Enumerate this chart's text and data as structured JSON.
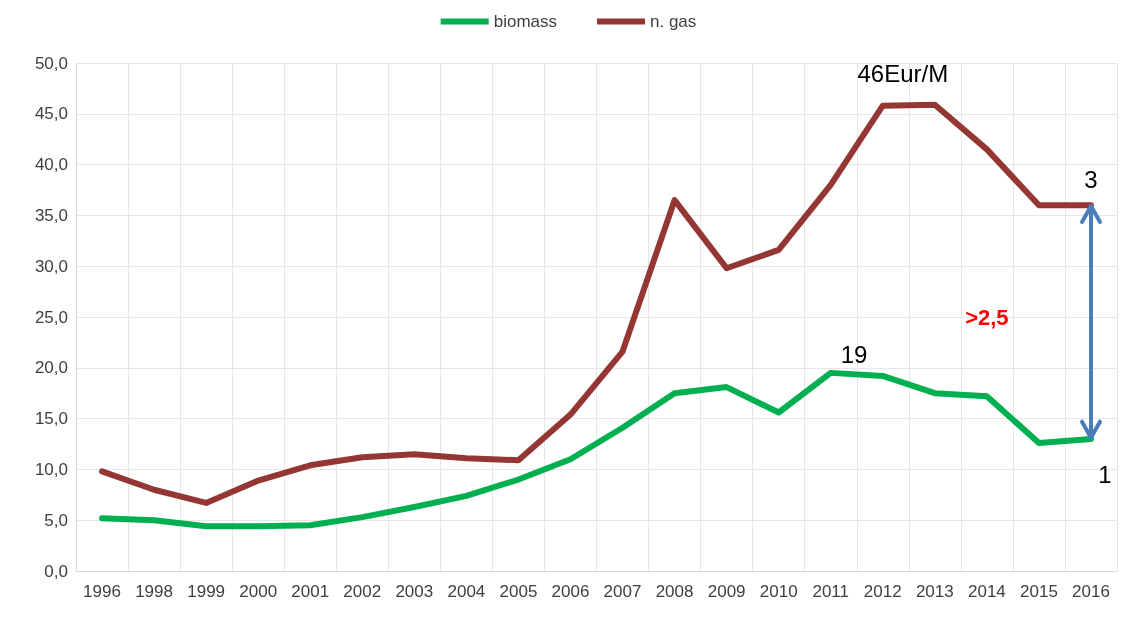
{
  "chart_data": {
    "type": "line",
    "categories": [
      "1996",
      "1998",
      "1999",
      "2000",
      "2001",
      "2002",
      "2003",
      "2004",
      "2005",
      "2006",
      "2007",
      "2008",
      "2009",
      "2010",
      "2011",
      "2012",
      "2013",
      "2014",
      "2015",
      "2016"
    ],
    "series": [
      {
        "name": "biomass",
        "color": "#00b050",
        "values": [
          5.2,
          5.0,
          4.4,
          4.4,
          4.5,
          5.3,
          6.3,
          7.4,
          9.0,
          11.0,
          14.1,
          17.5,
          18.1,
          15.6,
          19.5,
          19.2,
          17.5,
          17.2,
          12.6,
          13.0
        ]
      },
      {
        "name": "n. gas",
        "color": "#943634",
        "values": [
          9.8,
          8.0,
          6.7,
          8.9,
          10.4,
          11.2,
          11.5,
          11.1,
          10.9,
          15.4,
          21.6,
          36.5,
          29.8,
          31.6,
          38.0,
          45.8,
          45.9,
          41.5,
          36.0,
          36.0
        ]
      }
    ],
    "ylim": [
      0,
      50
    ],
    "yticks": [
      {
        "value": 0,
        "label": "0,0"
      },
      {
        "value": 5,
        "label": "5,0"
      },
      {
        "value": 10,
        "label": "10,0"
      },
      {
        "value": 15,
        "label": "15,0"
      },
      {
        "value": 20,
        "label": "20,0"
      },
      {
        "value": 25,
        "label": "25,0"
      },
      {
        "value": 30,
        "label": "30,0"
      },
      {
        "value": 35,
        "label": "35,0"
      },
      {
        "value": 40,
        "label": "40,0"
      },
      {
        "value": 45,
        "label": "45,0"
      },
      {
        "value": 50,
        "label": "50,0"
      }
    ],
    "annotations": [
      {
        "text": "46Eur/M",
        "x": "2012",
        "y": 45.8
      },
      {
        "text": "3",
        "x": "2016",
        "y": 36.0
      },
      {
        "text": "19",
        "x": "2011",
        "y": 19.5
      },
      {
        "text": "1",
        "x": "2016",
        "y": 13.0
      },
      ">2,5"
    ],
    "grid": true,
    "legend": "top",
    "marker": "none",
    "line_style": "solid"
  }
}
